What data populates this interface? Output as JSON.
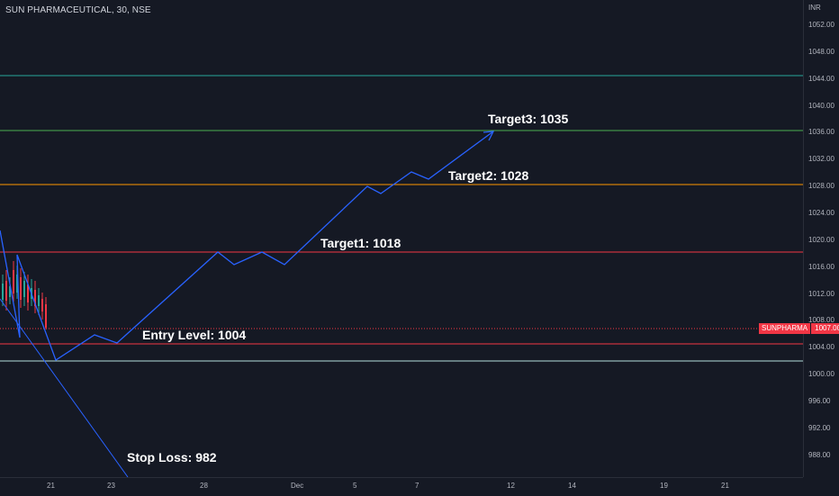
{
  "header": {
    "title": "SUN PHARMACEUTICAL, 30, NSE"
  },
  "price_axis": {
    "unit": "INR",
    "ticks": [
      "1052.00",
      "1048.00",
      "1044.00",
      "1040.00",
      "1036.00",
      "1032.00",
      "1028.00",
      "1024.00",
      "1020.00",
      "1016.00",
      "1012.00",
      "1008.00",
      "1004.00",
      "1000.00",
      "996.00",
      "992.00",
      "988.00"
    ]
  },
  "time_axis": {
    "ticks": [
      "21",
      "23",
      "28",
      "Dec",
      "5",
      "7",
      "12",
      "14",
      "19",
      "21"
    ]
  },
  "current_price": {
    "symbol": "SUNPHARMA",
    "value": "1007.00"
  },
  "annotations": {
    "target3": "Target3: 1035",
    "target2": "Target2: 1028",
    "target1": "Target1: 1018",
    "entry": "Entry Level: 1004",
    "stop_loss": "Stop Loss: 982"
  },
  "levels": {
    "colors": {
      "level_1044": "#26a69a",
      "target3": "#4caf50",
      "target2": "#ff9800",
      "target1": "#f23645",
      "entry": "#f23645",
      "support": "#b2dfdb",
      "projection": "#2962ff"
    }
  }
}
